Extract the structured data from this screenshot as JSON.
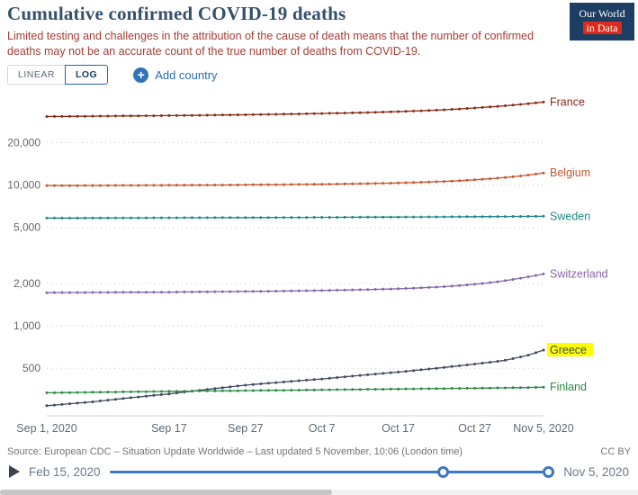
{
  "header": {
    "title": "Cumulative confirmed COVID-19 deaths",
    "subtitle": "Limited testing and challenges in the attribution of the cause of death means that the number of confirmed deaths may not be an accurate count of the true number of deaths from COVID-19.",
    "logo": {
      "line1": "Our World",
      "line2": "in Data"
    }
  },
  "controls": {
    "linear": "LINEAR",
    "log": "LOG",
    "plus_icon": "+",
    "add_country": "Add country"
  },
  "chart_data": {
    "type": "line",
    "yscale": "log",
    "title": "Cumulative confirmed COVID-19 deaths",
    "grid": true,
    "legend": "end-of-line labels",
    "x_start": "Sep 1, 2020",
    "x_end": "Nov 5, 2020",
    "x_tick_labels": [
      "Sep 1, 2020",
      "Sep 17",
      "Sep 27",
      "Oct 7",
      "Oct 17",
      "Oct 27",
      "Nov 5, 2020"
    ],
    "x_tick_indices": [
      0,
      16,
      26,
      36,
      46,
      56,
      65
    ],
    "y_ticks": [
      500,
      1000,
      2000,
      5000,
      10000,
      20000
    ],
    "y_tick_labels": [
      "500",
      "1,000",
      "2,000",
      "5,000",
      "10,000",
      "20,000"
    ],
    "ylim": [
      230,
      42000
    ],
    "series": [
      {
        "name": "France",
        "color": "#892916",
        "highlight": false,
        "values": [
          30610,
          30640,
          30670,
          30700,
          30730,
          30760,
          30790,
          30820,
          30850,
          30880,
          30910,
          30940,
          30970,
          31000,
          31030,
          31060,
          31095,
          31130,
          31170,
          31210,
          31250,
          31290,
          31335,
          31380,
          31430,
          31480,
          31535,
          31590,
          31650,
          31710,
          31770,
          31835,
          31900,
          31970,
          32040,
          32115,
          32190,
          32270,
          32350,
          32440,
          32530,
          32630,
          32730,
          32840,
          32950,
          33070,
          33200,
          33340,
          33490,
          33650,
          33820,
          34000,
          34200,
          34420,
          34660,
          34920,
          35200,
          35500,
          35820,
          36160,
          36520,
          36900,
          37310,
          37760,
          38260,
          38800
        ]
      },
      {
        "name": "Belgium",
        "color": "#c4562c",
        "highlight": false,
        "values": [
          9900,
          9903,
          9906,
          9909,
          9912,
          9915,
          9918,
          9921,
          9925,
          9929,
          9933,
          9937,
          9941,
          9945,
          9950,
          9955,
          9960,
          9965,
          9970,
          9976,
          9982,
          9988,
          9994,
          10001,
          10008,
          10015,
          10023,
          10031,
          10040,
          10050,
          10060,
          10070,
          10081,
          10092,
          10104,
          10116,
          10129,
          10143,
          10158,
          10175,
          10193,
          10213,
          10235,
          10259,
          10285,
          10313,
          10344,
          10378,
          10415,
          10456,
          10501,
          10550,
          10604,
          10664,
          10730,
          10803,
          10884,
          10974,
          11074,
          11185,
          11308,
          11445,
          11600,
          11770,
          11960,
          12170
        ]
      },
      {
        "name": "Sweden",
        "color": "#1f8a89",
        "highlight": false,
        "values": [
          5821,
          5823,
          5825,
          5827,
          5829,
          5831,
          5833,
          5835,
          5837,
          5839,
          5841,
          5843,
          5845,
          5846,
          5848,
          5850,
          5852,
          5854,
          5856,
          5858,
          5860,
          5862,
          5864,
          5866,
          5868,
          5870,
          5872,
          5874,
          5876,
          5878,
          5880,
          5882,
          5884,
          5886,
          5888,
          5890,
          5892,
          5895,
          5898,
          5901,
          5904,
          5907,
          5910,
          5913,
          5916,
          5919,
          5922,
          5925,
          5928,
          5931,
          5934,
          5937,
          5940,
          5944,
          5948,
          5952,
          5956,
          5960,
          5964,
          5968,
          5972,
          5977,
          5982,
          5988,
          5994,
          6002
        ]
      },
      {
        "name": "Switzerland",
        "color": "#8465ab",
        "highlight": false,
        "values": [
          1721,
          1722,
          1723,
          1724,
          1725,
          1726,
          1727,
          1728,
          1729,
          1730,
          1731,
          1732,
          1733,
          1734,
          1735,
          1736,
          1737,
          1738,
          1740,
          1742,
          1744,
          1746,
          1748,
          1750,
          1752,
          1754,
          1756,
          1758,
          1760,
          1762,
          1765,
          1768,
          1771,
          1774,
          1777,
          1780,
          1784,
          1788,
          1792,
          1796,
          1800,
          1805,
          1810,
          1816,
          1822,
          1828,
          1835,
          1843,
          1852,
          1862,
          1873,
          1885,
          1899,
          1915,
          1933,
          1953,
          1975,
          2000,
          2028,
          2060,
          2096,
          2136,
          2180,
          2228,
          2280,
          2336
        ]
      },
      {
        "name": "Greece",
        "color": "#3d4a63",
        "highlight": true,
        "values": [
          271,
          274,
          277,
          280,
          283,
          286,
          289,
          293,
          297,
          301,
          305,
          309,
          313,
          317,
          321,
          325,
          329,
          334,
          339,
          344,
          349,
          354,
          359,
          364,
          369,
          374,
          379,
          384,
          388,
          392,
          396,
          400,
          404,
          408,
          412,
          416,
          420,
          425,
          430,
          435,
          440,
          445,
          450,
          455,
          460,
          465,
          470,
          476,
          482,
          488,
          494,
          500,
          507,
          514,
          521,
          528,
          536,
          544,
          552,
          560,
          570,
          585,
          602,
          620,
          645,
          673
        ]
      },
      {
        "name": "Finland",
        "color": "#2d8a46",
        "highlight": false,
        "values": [
          335,
          335,
          336,
          336,
          337,
          337,
          338,
          338,
          339,
          339,
          340,
          340,
          341,
          341,
          342,
          342,
          343,
          343,
          344,
          344,
          345,
          345,
          345,
          346,
          346,
          346,
          347,
          347,
          348,
          348,
          349,
          349,
          350,
          350,
          351,
          351,
          352,
          352,
          353,
          353,
          354,
          354,
          355,
          355,
          355,
          356,
          356,
          357,
          357,
          358,
          358,
          359,
          359,
          360,
          360,
          361,
          361,
          362,
          362,
          363,
          363,
          364,
          364,
          365,
          366,
          367
        ]
      }
    ],
    "highlight_color": "#ffff00"
  },
  "footer": {
    "source": "Source: European CDC – Situation Update Worldwide – Last updated 5 November, 10:06 (London time)",
    "license": "CC BY"
  },
  "timeline": {
    "start": "Feb 15, 2020",
    "end": "Nov 5, 2020"
  }
}
